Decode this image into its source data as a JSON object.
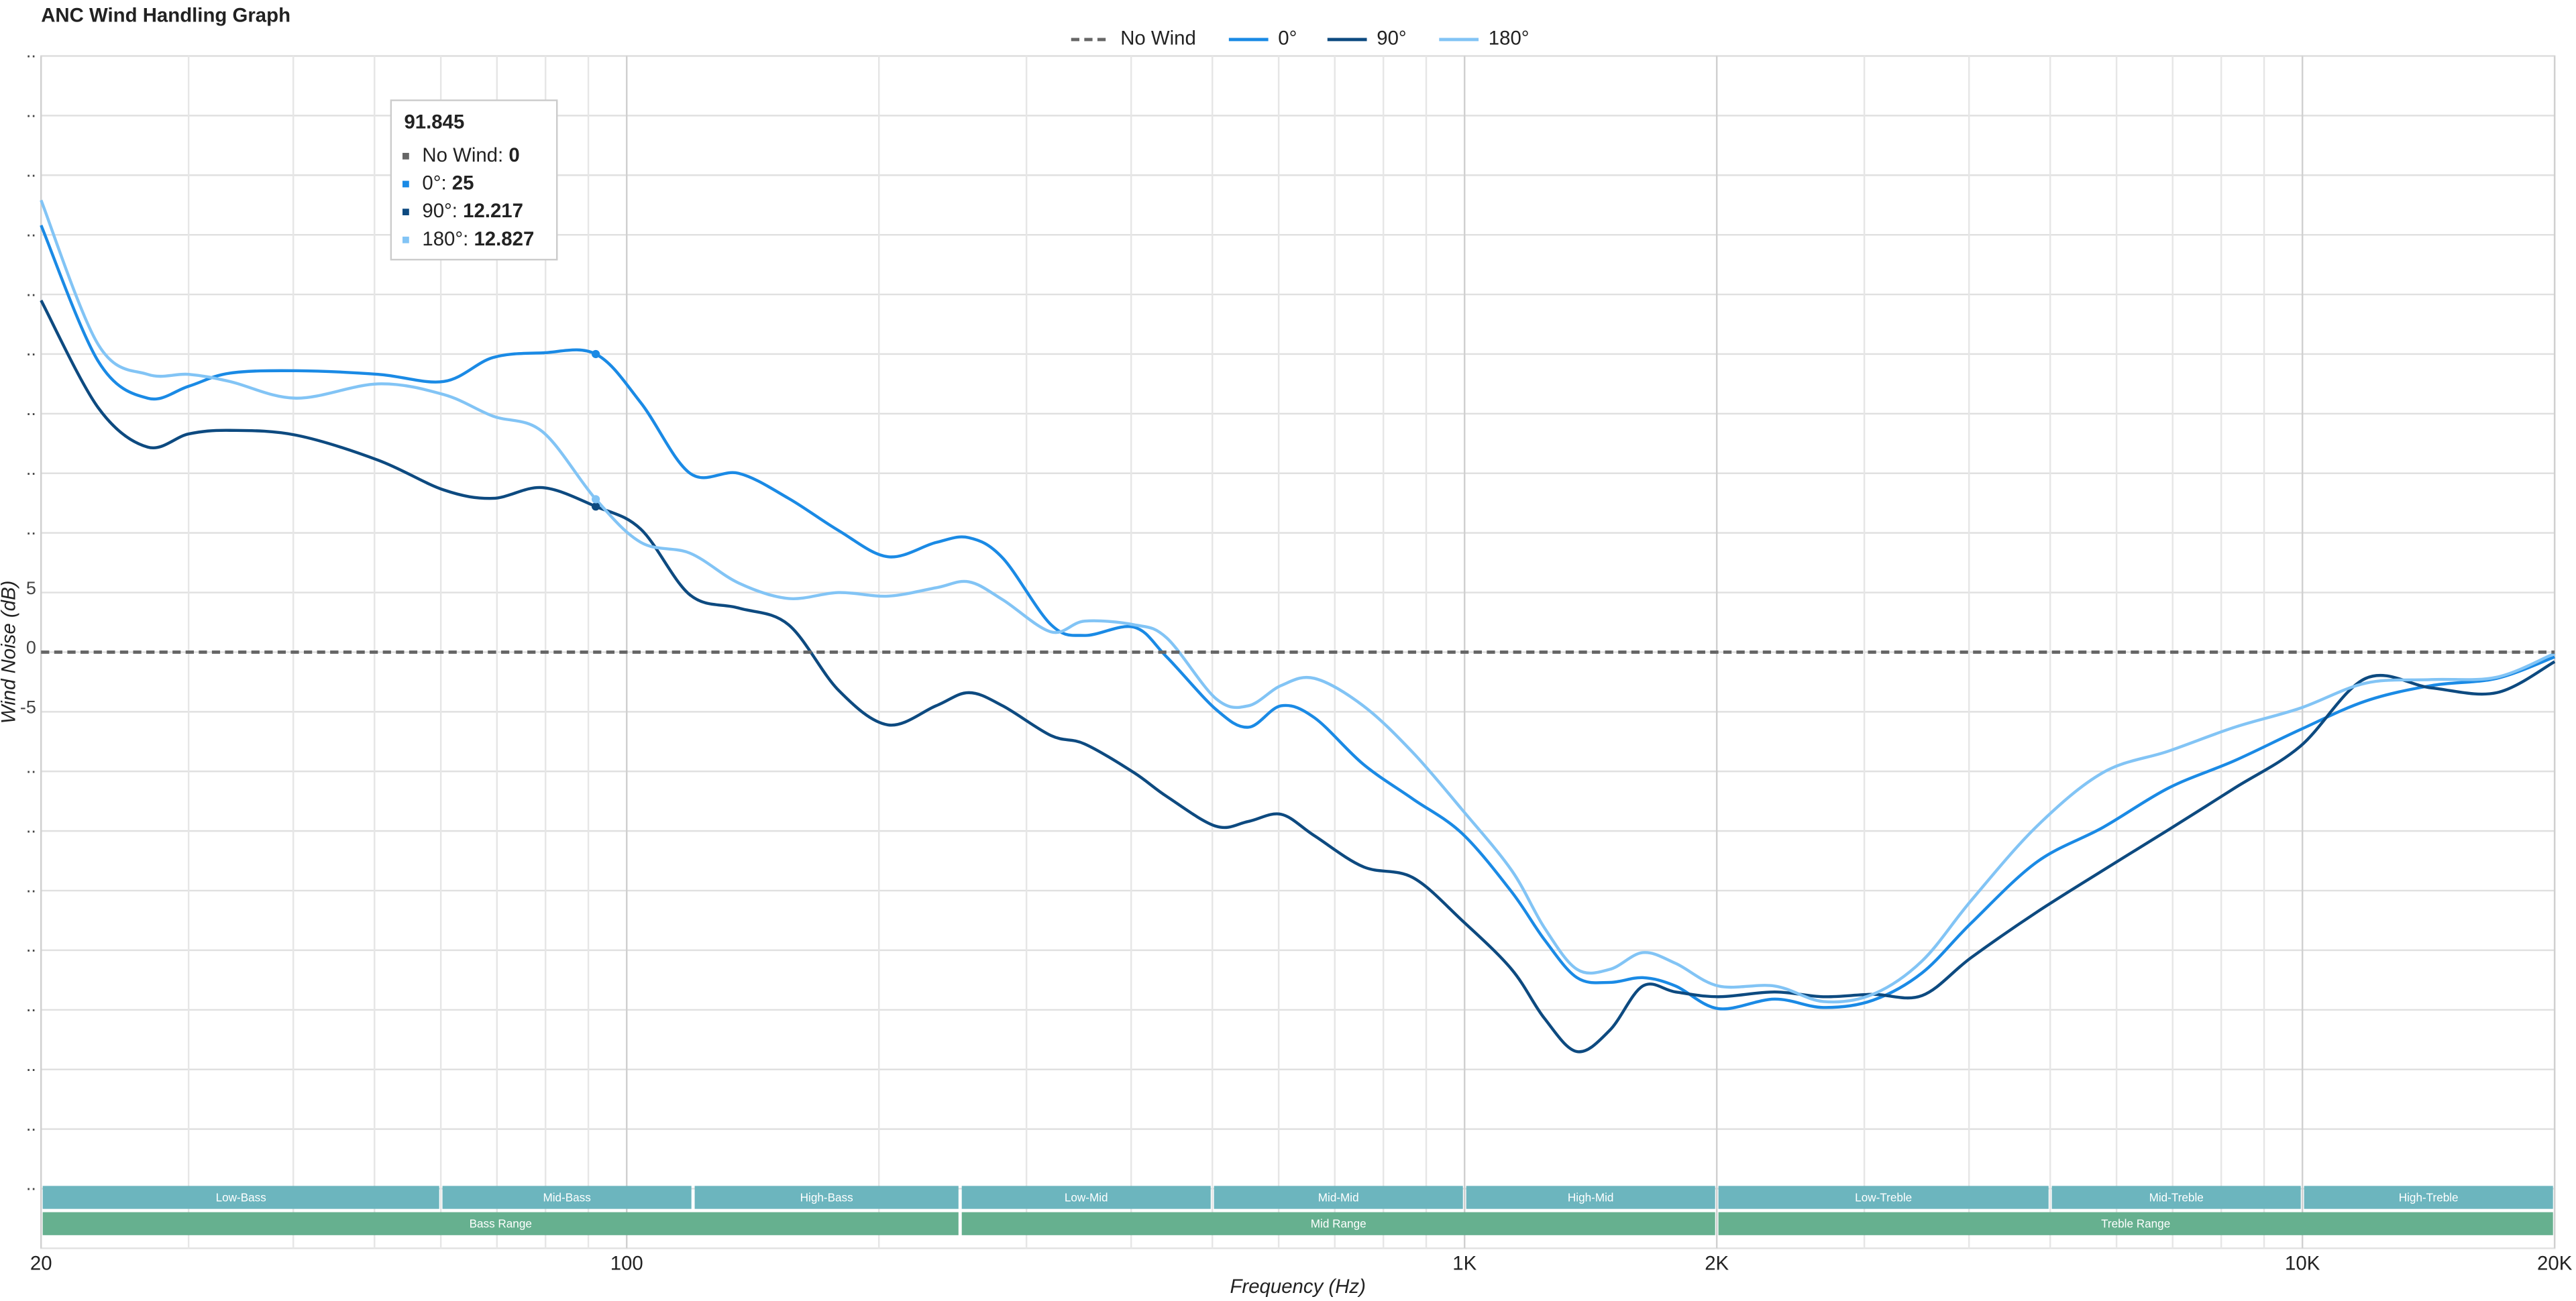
{
  "chart_data": {
    "type": "line",
    "title": "ANC Wind Handling Graph",
    "x_label": "Frequency (Hz)",
    "y_label": "Wind Noise (dB)",
    "xscale": "log",
    "xlim": [
      20,
      20000
    ],
    "xticks": [
      20,
      100,
      {
        "value": 1000,
        "label": "1K"
      },
      {
        "value": 2000,
        "label": "2K"
      },
      {
        "value": 10000,
        "label": "10K"
      },
      {
        "value": 20000,
        "label": "20K"
      }
    ],
    "x_minor_ticks": [
      30,
      40,
      50,
      60,
      70,
      80,
      90,
      200,
      300,
      400,
      500,
      600,
      700,
      800,
      900,
      3000,
      4000,
      5000,
      6000,
      7000,
      8000,
      9000
    ],
    "ylim": [
      -50,
      50
    ],
    "yticks": [
      {
        "value": -45,
        "label": ".."
      },
      {
        "value": -40,
        "label": ".."
      },
      {
        "value": -35,
        "label": ".."
      },
      {
        "value": -30,
        "label": ".."
      },
      {
        "value": -25,
        "label": ".."
      },
      {
        "value": -20,
        "label": ".."
      },
      {
        "value": -15,
        "label": ".."
      },
      {
        "value": -10,
        "label": ".."
      },
      -5,
      0,
      5,
      {
        "value": 10,
        "label": ".."
      },
      {
        "value": 15,
        "label": ".."
      },
      {
        "value": 20,
        "label": ".."
      },
      {
        "value": 25,
        "label": ".."
      },
      {
        "value": 30,
        "label": ".."
      },
      {
        "value": 35,
        "label": ".."
      },
      {
        "value": 40,
        "label": ".."
      },
      {
        "value": 45,
        "label": ".."
      },
      {
        "value": 50,
        "label": ".."
      }
    ],
    "grid": true,
    "legend": "top",
    "x": [
      20,
      23.4,
      26.8,
      30,
      33.6,
      40.3,
      50.5,
      60.5,
      69.2,
      79.3,
      91.845,
      104,
      119,
      136,
      156,
      179,
      205,
      234,
      256,
      281,
      321,
      352,
      403,
      441,
      505,
      552,
      604,
      662,
      757,
      867,
      993,
      1138,
      1245,
      1362,
      1491,
      1632,
      1786,
      2009,
      2344,
      2680,
      3070,
      3516,
      4027,
      4820,
      5780,
      6920,
      8300,
      9940,
      11900,
      14260,
      17060,
      20000
    ],
    "series": [
      {
        "name": "No Wind",
        "color": "#666666",
        "dash": true,
        "values": [
          0,
          0,
          0,
          0,
          0,
          0,
          0,
          0,
          0,
          0,
          0,
          0,
          0,
          0,
          0,
          0,
          0,
          0,
          0,
          0,
          0,
          0,
          0,
          0,
          0,
          0,
          0,
          0,
          0,
          0,
          0,
          0,
          0,
          0,
          0,
          0,
          0,
          0,
          0,
          0,
          0,
          0,
          0,
          0,
          0,
          0,
          0,
          0,
          0,
          0,
          0,
          0
        ]
      },
      {
        "name": "0°",
        "color": "#1a8ae5",
        "values": [
          35.8,
          24.4,
          21.3,
          22.3,
          23.4,
          23.6,
          23.3,
          22.7,
          24.7,
          25.1,
          25,
          20.9,
          15,
          15,
          12.9,
          10.2,
          8,
          9.2,
          9.6,
          7.9,
          2.3,
          1.4,
          2.1,
          -0.4,
          -4.8,
          -6.3,
          -4.5,
          -5.5,
          -9.4,
          -12.3,
          -15.2,
          -20.1,
          -24.1,
          -27.3,
          -27.7,
          -27.3,
          -28,
          -29.9,
          -29.1,
          -29.8,
          -29.2,
          -26.9,
          -22.7,
          -17.6,
          -14.7,
          -11.4,
          -9.1,
          -6.5,
          -4.1,
          -2.8,
          -2.2,
          -0.4
        ]
      },
      {
        "name": "90°",
        "color": "#0d4a80",
        "values": [
          29.5,
          20.5,
          17.2,
          18.3,
          18.6,
          18.2,
          16.1,
          13.6,
          12.9,
          13.8,
          12.217,
          10.3,
          4.8,
          3.7,
          2.3,
          -3.2,
          -6.1,
          -4.5,
          -3.4,
          -4.5,
          -7,
          -7.7,
          -10.1,
          -12.1,
          -14.6,
          -14.2,
          -13.6,
          -15.4,
          -18,
          -18.9,
          -22.5,
          -26.6,
          -30.7,
          -33.5,
          -31.7,
          -28,
          -28.5,
          -28.9,
          -28.5,
          -28.9,
          -28.7,
          -28.8,
          -25.6,
          -21.8,
          -18.3,
          -14.9,
          -11.4,
          -7.9,
          -2.2,
          -3,
          -3.4,
          -0.8
        ]
      },
      {
        "name": "180°",
        "color": "#82c4f5",
        "values": [
          37.9,
          25.8,
          23.3,
          23.3,
          22.7,
          21.3,
          22.5,
          21.6,
          19.8,
          18.5,
          12.827,
          9.2,
          8.3,
          5.8,
          4.5,
          5,
          4.7,
          5.4,
          5.9,
          4.4,
          1.7,
          2.6,
          2.3,
          1.2,
          -3.9,
          -4.5,
          -2.8,
          -2.2,
          -4.5,
          -8.4,
          -13.2,
          -18.3,
          -23.1,
          -26.6,
          -26.6,
          -25.2,
          -26.1,
          -28,
          -28,
          -29.3,
          -28.7,
          -25.9,
          -20.8,
          -14.6,
          -10.1,
          -8.3,
          -6.3,
          -4.7,
          -2.6,
          -2.3,
          -2.1,
          -0.1
        ]
      }
    ],
    "bands": [
      [
        {
          "label": "Low-Bass",
          "range": [
            20,
            60
          ]
        },
        {
          "label": "Mid-Bass",
          "range": [
            60,
            120
          ]
        },
        {
          "label": "High-Bass",
          "range": [
            120,
            250
          ]
        },
        {
          "label": "Low-Mid",
          "range": [
            250,
            500
          ]
        },
        {
          "label": "Mid-Mid",
          "range": [
            500,
            1000
          ]
        },
        {
          "label": "High-Mid",
          "range": [
            1000,
            2000
          ]
        },
        {
          "label": "Low-Treble",
          "range": [
            2000,
            5000
          ]
        },
        {
          "label": "Mid-Treble",
          "range": [
            5000,
            10000
          ]
        },
        {
          "label": "High-Treble",
          "range": [
            10000,
            20000
          ]
        }
      ],
      [
        {
          "label": "Bass Range",
          "range": [
            20,
            250
          ]
        },
        {
          "label": "Mid Range",
          "range": [
            250,
            2000
          ]
        },
        {
          "label": "Treble Range",
          "range": [
            2000,
            20000
          ]
        }
      ]
    ],
    "tooltip": {
      "x": 91.845,
      "values": [
        0,
        25,
        12.217,
        12.827
      ]
    }
  }
}
